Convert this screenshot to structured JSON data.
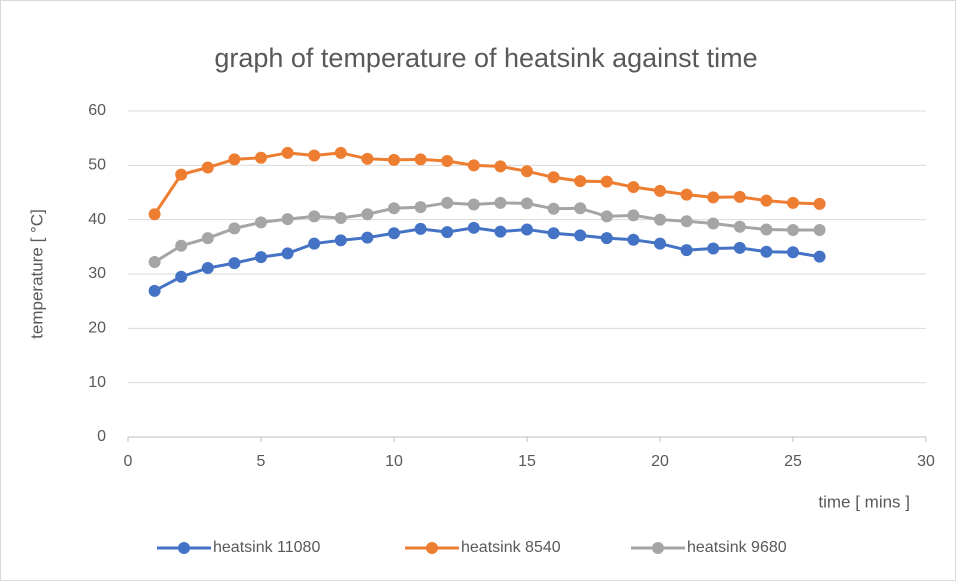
{
  "chart_data": {
    "type": "line",
    "title": "graph of temperature of heatsink against time",
    "xlabel": "time [ mins ]",
    "ylabel": "temperature [ °C]",
    "x": [
      1,
      2,
      3,
      4,
      5,
      6,
      7,
      8,
      9,
      10,
      11,
      12,
      13,
      14,
      15,
      16,
      17,
      18,
      19,
      20,
      21,
      22,
      23,
      24,
      25,
      26
    ],
    "series": [
      {
        "name": "heatsink 11080",
        "color": "#4472c4",
        "values": [
          26.9,
          29.5,
          31.1,
          32,
          33.1,
          33.8,
          35.6,
          36.2,
          36.7,
          37.5,
          38.3,
          37.7,
          38.5,
          37.8,
          38.2,
          37.5,
          37.1,
          36.6,
          36.3,
          35.6,
          34.4,
          34.7,
          34.8,
          34.1,
          34,
          33.2
        ]
      },
      {
        "name": "heatsink 8540",
        "color": "#ed7d31",
        "values": [
          41,
          48.3,
          49.6,
          51.1,
          51.4,
          52.3,
          51.8,
          52.3,
          51.2,
          51,
          51.1,
          50.8,
          50,
          49.8,
          48.9,
          47.8,
          47.1,
          47,
          46,
          45.3,
          44.6,
          44.1,
          44.2,
          43.5,
          43.1,
          42.9
        ]
      },
      {
        "name": "heatsink 9680",
        "color": "#a5a5a5",
        "values": [
          32.2,
          35.2,
          36.6,
          38.4,
          39.5,
          40.1,
          40.6,
          40.3,
          41,
          42.1,
          42.3,
          43.1,
          42.8,
          43.1,
          43,
          42,
          42.1,
          40.6,
          40.8,
          40,
          39.7,
          39.3,
          38.7,
          38.2,
          38.1,
          38.1
        ]
      }
    ],
    "xlim": [
      0,
      30
    ],
    "xticks": [
      0,
      5,
      10,
      15,
      20,
      25,
      30
    ],
    "ylim": [
      0,
      60
    ],
    "yticks": [
      0,
      10,
      20,
      30,
      40,
      50,
      60
    ],
    "grid": true,
    "legend": "bottom"
  }
}
